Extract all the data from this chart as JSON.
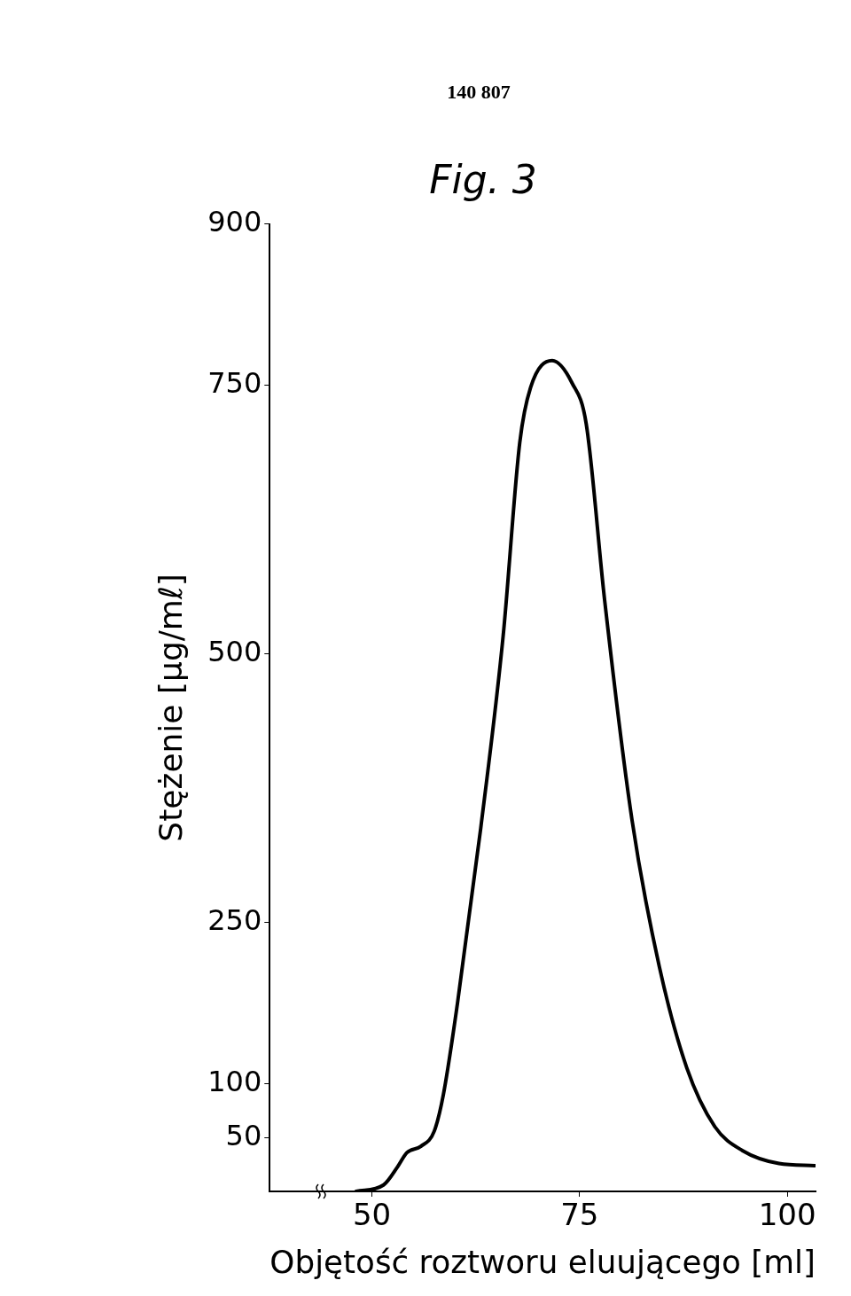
{
  "chart_data": {
    "type": "line",
    "title": "Fig. 3",
    "xlabel": "Objętość roztworu eluującego [ml]",
    "ylabel": "Stężenie [μg/mℓ]",
    "annotations": [
      "140 807"
    ],
    "series": [
      {
        "color": "#000000",
        "x": [
          48.1,
          51.4,
          53.1,
          54.2,
          55.9,
          57.5,
          58.6,
          60.3,
          63.1,
          65.8,
          67.8,
          69.1,
          71.7,
          74.1,
          75.8,
          78,
          81.3,
          84.6,
          87.9,
          91.3,
          94.6,
          99,
          103.3
        ],
        "values": [
          0,
          6,
          23,
          36,
          42,
          56,
          90,
          175,
          338,
          517,
          697,
          748,
          773,
          752,
          714,
          551,
          346,
          209,
          115,
          60,
          38,
          26,
          24
        ]
      }
    ],
    "xlim": [
      37.7,
      103.4
    ],
    "xticks": [
      50,
      75,
      100
    ],
    "ylim": [
      0,
      900
    ],
    "yticks": [
      50,
      100,
      250,
      500,
      750,
      900
    ],
    "grid": false,
    "legend": false,
    "marker": "none",
    "line_style": "solid"
  }
}
